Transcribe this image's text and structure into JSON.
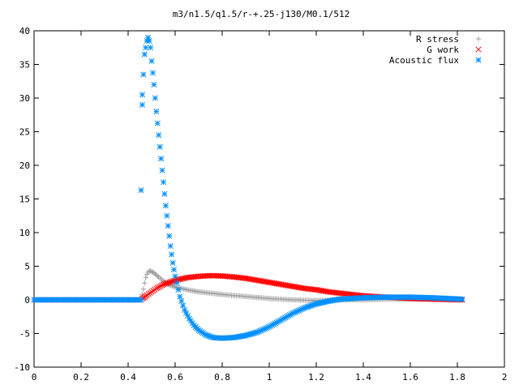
{
  "chart_data": {
    "type": "scatter",
    "title": "m3/n1.5/q1.5/r-+.25-j130/M0.1/512",
    "xlabel": "",
    "ylabel": "",
    "xlim": [
      0,
      2
    ],
    "ylim": [
      -10,
      40
    ],
    "xticks": [
      0,
      0.2,
      0.4,
      0.6,
      0.8,
      1,
      1.2,
      1.4,
      1.6,
      1.8,
      2
    ],
    "yticks": [
      -10,
      -5,
      0,
      5,
      10,
      15,
      20,
      25,
      30,
      35,
      40
    ],
    "grid": false,
    "legend_position": "top-right",
    "series": [
      {
        "name": "R stress",
        "marker": "plus",
        "color": "#a0a0a0",
        "points": [
          [
            0.0,
            0
          ],
          [
            0.2,
            0
          ],
          [
            0.4,
            0
          ],
          [
            0.455,
            0
          ],
          [
            0.46,
            0.8
          ],
          [
            0.465,
            1.6
          ],
          [
            0.47,
            2.5
          ],
          [
            0.475,
            3.3
          ],
          [
            0.48,
            3.8
          ],
          [
            0.485,
            4.1
          ],
          [
            0.49,
            4.3
          ],
          [
            0.495,
            4.3
          ],
          [
            0.5,
            4.2
          ],
          [
            0.51,
            4.0
          ],
          [
            0.52,
            3.7
          ],
          [
            0.53,
            3.4
          ],
          [
            0.55,
            2.8
          ],
          [
            0.57,
            2.3
          ],
          [
            0.6,
            1.9
          ],
          [
            0.65,
            1.5
          ],
          [
            0.7,
            1.2
          ],
          [
            0.8,
            0.8
          ],
          [
            0.9,
            0.5
          ],
          [
            1.0,
            0.2
          ],
          [
            1.1,
            0.0
          ],
          [
            1.2,
            -0.1
          ],
          [
            1.3,
            0.0
          ],
          [
            1.4,
            0.0
          ],
          [
            1.5,
            0.1
          ],
          [
            1.6,
            0.1
          ],
          [
            1.7,
            0.1
          ],
          [
            1.82,
            0.0
          ]
        ]
      },
      {
        "name": "G work",
        "marker": "cross",
        "color": "#ff0000",
        "points": [
          [
            0.0,
            0
          ],
          [
            0.2,
            0
          ],
          [
            0.4,
            0
          ],
          [
            0.455,
            0
          ],
          [
            0.46,
            0.2
          ],
          [
            0.47,
            0.4
          ],
          [
            0.48,
            0.7
          ],
          [
            0.5,
            1.2
          ],
          [
            0.52,
            1.7
          ],
          [
            0.55,
            2.3
          ],
          [
            0.6,
            2.9
          ],
          [
            0.65,
            3.3
          ],
          [
            0.7,
            3.5
          ],
          [
            0.75,
            3.6
          ],
          [
            0.8,
            3.55
          ],
          [
            0.85,
            3.4
          ],
          [
            0.9,
            3.2
          ],
          [
            0.95,
            2.9
          ],
          [
            1.0,
            2.6
          ],
          [
            1.05,
            2.3
          ],
          [
            1.1,
            2.0
          ],
          [
            1.15,
            1.7
          ],
          [
            1.2,
            1.5
          ],
          [
            1.25,
            1.2
          ],
          [
            1.3,
            1.0
          ],
          [
            1.35,
            0.8
          ],
          [
            1.4,
            0.6
          ],
          [
            1.5,
            0.4
          ],
          [
            1.6,
            0.2
          ],
          [
            1.7,
            0.1
          ],
          [
            1.82,
            0.0
          ]
        ]
      },
      {
        "name": "Acoustic flux",
        "marker": "star",
        "color": "#0090ff",
        "points": [
          [
            0.0,
            0
          ],
          [
            0.2,
            0
          ],
          [
            0.4,
            0
          ],
          [
            0.455,
            0
          ],
          [
            0.455,
            16.3
          ],
          [
            0.46,
            29.0
          ],
          [
            0.46,
            30.5
          ],
          [
            0.465,
            33.5
          ],
          [
            0.47,
            36.5
          ],
          [
            0.475,
            37.5
          ],
          [
            0.48,
            38.5
          ],
          [
            0.485,
            39.0
          ],
          [
            0.49,
            38.5
          ],
          [
            0.495,
            37.5
          ],
          [
            0.5,
            35.5
          ],
          [
            0.51,
            32.0
          ],
          [
            0.52,
            28.0
          ],
          [
            0.53,
            24.5
          ],
          [
            0.54,
            21.0
          ],
          [
            0.55,
            17.5
          ],
          [
            0.56,
            14.0
          ],
          [
            0.57,
            11.0
          ],
          [
            0.58,
            8.0
          ],
          [
            0.59,
            5.5
          ],
          [
            0.6,
            3.5
          ],
          [
            0.62,
            0.5
          ],
          [
            0.64,
            -1.5
          ],
          [
            0.66,
            -2.8
          ],
          [
            0.68,
            -3.8
          ],
          [
            0.7,
            -4.5
          ],
          [
            0.73,
            -5.2
          ],
          [
            0.76,
            -5.6
          ],
          [
            0.8,
            -5.7
          ],
          [
            0.85,
            -5.6
          ],
          [
            0.9,
            -5.3
          ],
          [
            0.95,
            -4.8
          ],
          [
            1.0,
            -4.0
          ],
          [
            1.05,
            -3.0
          ],
          [
            1.1,
            -2.0
          ],
          [
            1.15,
            -1.2
          ],
          [
            1.2,
            -0.6
          ],
          [
            1.25,
            -0.2
          ],
          [
            1.3,
            0.1
          ],
          [
            1.4,
            0.3
          ],
          [
            1.5,
            0.4
          ],
          [
            1.6,
            0.4
          ],
          [
            1.7,
            0.3
          ],
          [
            1.82,
            0.1
          ]
        ]
      }
    ]
  }
}
